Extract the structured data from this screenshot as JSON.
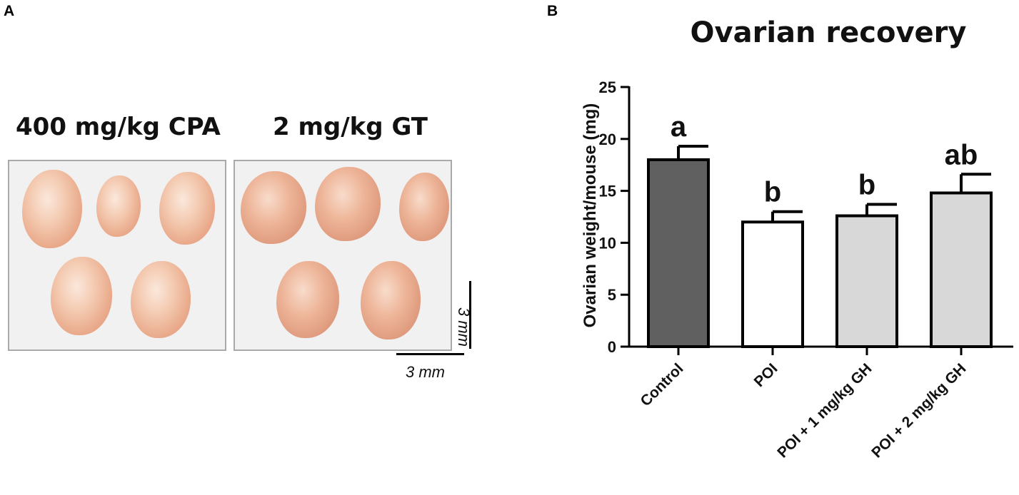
{
  "panels": {
    "a_label": "A",
    "b_label": "B"
  },
  "photos": {
    "group1_label": "400 mg/kg CPA",
    "group2_label": "2 mg/kg GT",
    "scale_vertical": "3 mm",
    "scale_horizontal": "3 mm"
  },
  "colors": {
    "control_bar": "#606060",
    "poi_bar": "#ffffff",
    "gh_bars": "#d8d8d8",
    "outline": "#000000"
  },
  "chart_data": {
    "type": "bar",
    "title": "Ovarian recovery",
    "xlabel": "",
    "ylabel": "Ovarian weight/mouse (mg)",
    "categories": [
      "Control",
      "POI",
      "POI + 1 mg/kg GH",
      "POI + 2 mg/kg GH"
    ],
    "values": [
      18.0,
      12.0,
      12.6,
      14.8
    ],
    "errors": [
      1.3,
      1.0,
      1.1,
      1.8
    ],
    "significance_letters": [
      "a",
      "b",
      "b",
      "ab"
    ],
    "ylim": [
      0,
      25
    ],
    "yticks": [
      0,
      5,
      10,
      15,
      20,
      25
    ],
    "grid": false
  }
}
